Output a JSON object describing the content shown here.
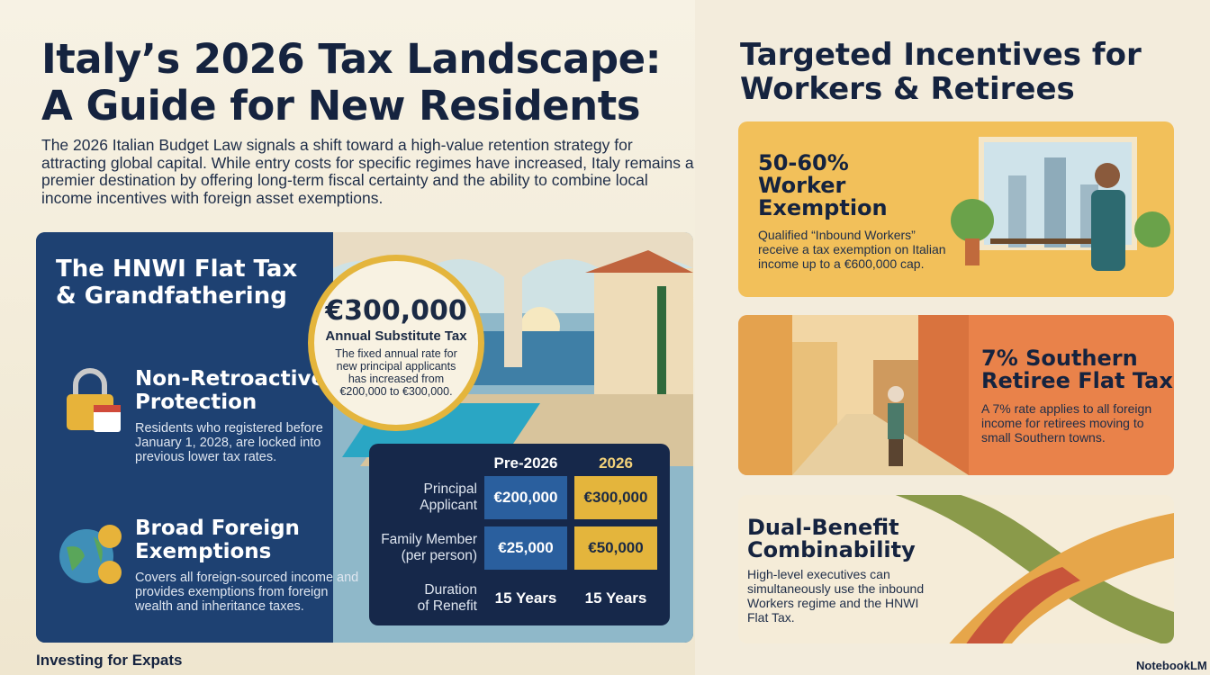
{
  "header": {
    "title_lines": [
      "Italy’s 2026 Tax Landscape:",
      "A Guide for New Residents"
    ],
    "intro": "The 2026 Italian Budget Law signals a shift toward a high-value retention strategy for attracting global capital. While entry costs for specific regimes have increased, Italy remains a premier destination by offering long-term fiscal certainty and the ability to combine local income incentives with foreign asset exemptions."
  },
  "hnwi": {
    "title_lines": [
      "The HNWI Flat Tax",
      "& Grandfathering"
    ],
    "badge": {
      "amount": "€300,000",
      "label": "Annual Substitute Tax",
      "text": "The fixed annual rate for new principal applicants has increased from €200,000 to €300,000."
    },
    "features": [
      {
        "title_lines": [
          "Non-Retroactive",
          "Protection"
        ],
        "text": "Residents who registered before January 1, 2028, are locked into previous lower tax rates."
      },
      {
        "title_lines": [
          "Broad Foreign",
          "Exemptions"
        ],
        "text": "Covers all foreign-sourced income and provides exemptions from foreign wealth and inheritance taxes."
      }
    ],
    "table": {
      "columns": [
        "Pre-2026",
        "2026"
      ],
      "rows": [
        {
          "label_lines": [
            "Principal",
            "Applicant"
          ],
          "cells": [
            "€200,000",
            "€300,000"
          ]
        },
        {
          "label_lines": [
            "Family Member",
            "(per person)"
          ],
          "cells": [
            "€25,000",
            "€50,000"
          ]
        },
        {
          "label_lines": [
            "Duration",
            "of Renefit"
          ],
          "cells": [
            "15 Years",
            "15 Years"
          ]
        }
      ]
    }
  },
  "incentives": {
    "title_lines": [
      "Targeted Incentives for",
      "Workers & Retirees"
    ],
    "cards": [
      {
        "title_lines": [
          "50-60%",
          "Worker",
          "Exemption"
        ],
        "text": "Qualified “Inbound Workers” receive a tax exemption on Italian income up to a €600,000 cap."
      },
      {
        "title_lines": [
          "7% Southern",
          "Retiree Flat Tax"
        ],
        "text": "A 7% rate applies to all foreign income for retirees moving to small Southern towns."
      },
      {
        "title_lines": [
          "Dual-Benefit",
          "Combinability"
        ],
        "text": "High-level executives can simultaneously use the inbound Workers regime and the HNWI Flat Tax."
      }
    ]
  },
  "footer": {
    "brand": "Investing for Expats",
    "credit": "NotebookLM"
  }
}
